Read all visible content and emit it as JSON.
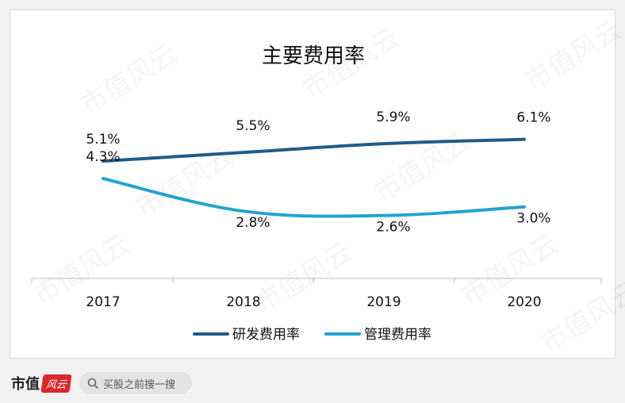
{
  "chart_data": {
    "type": "line",
    "title": "主要费用率",
    "categories": [
      "2017",
      "2018",
      "2019",
      "2020"
    ],
    "series": [
      {
        "name": "研发费用率",
        "values": [
          5.1,
          5.5,
          5.9,
          6.1
        ],
        "labels": [
          "5.1%",
          "5.5%",
          "5.9%",
          "6.1%"
        ],
        "color": "#1f5c8b"
      },
      {
        "name": "管理费用率",
        "values": [
          4.3,
          2.8,
          2.6,
          3.0
        ],
        "labels": [
          "4.3%",
          "2.8%",
          "2.6%",
          "3.0%"
        ],
        "color": "#23a3cf"
      }
    ],
    "ylim": [
      0,
      7
    ],
    "grid": false,
    "legend": "bottom",
    "smooth": true
  },
  "footer": {
    "brand": "市值",
    "brand_logo": "风云",
    "search_icon": "search-icon",
    "search_text": "买股之前搜一搜"
  },
  "watermark": "市值风云"
}
